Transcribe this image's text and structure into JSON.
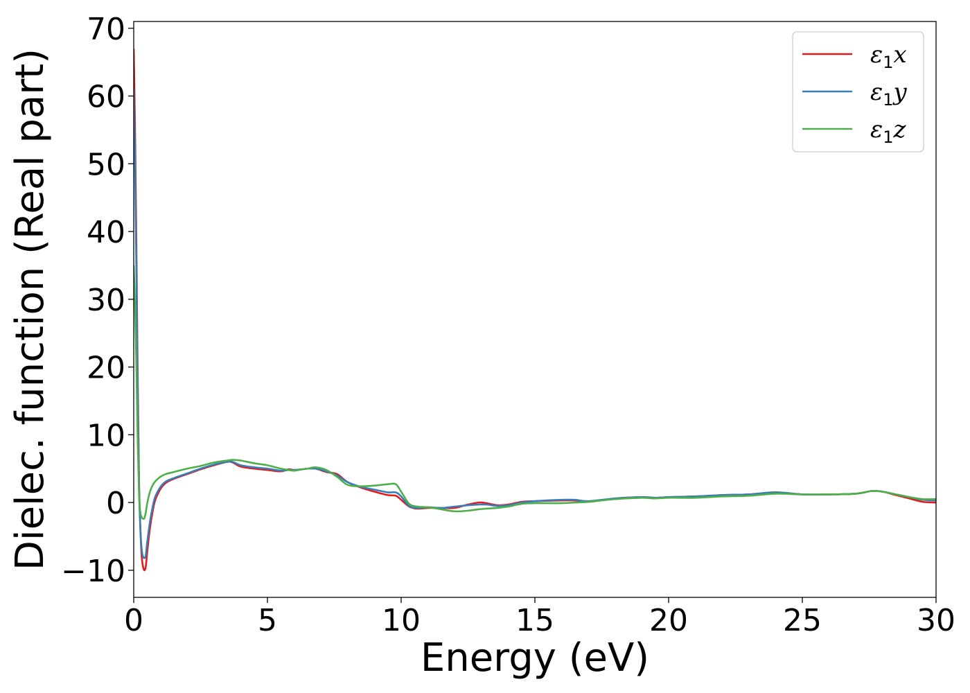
{
  "chart_data": {
    "type": "line",
    "title": "",
    "xlabel": "Energy (eV)",
    "ylabel": "Dielec. function (Real part)",
    "xlim": [
      0,
      30
    ],
    "ylim": [
      -14,
      71
    ],
    "xticks": [
      0,
      5,
      10,
      15,
      20,
      25,
      30
    ],
    "xtick_labels": [
      "0",
      "5",
      "10",
      "15",
      "20",
      "25",
      "30"
    ],
    "yticks": [
      -10,
      0,
      10,
      20,
      30,
      40,
      50,
      60,
      70
    ],
    "ytick_labels": [
      "−10",
      "0",
      "10",
      "20",
      "30",
      "40",
      "50",
      "60",
      "70"
    ],
    "grid": false,
    "legend_position": "top-right",
    "series": [
      {
        "name": "ε₁x",
        "legend": {
          "base": "ε",
          "sub": "1",
          "comp": "x"
        },
        "color": "#e41a1c",
        "x": [
          0.0,
          0.05,
          0.1,
          0.15,
          0.2,
          0.25,
          0.3,
          0.35,
          0.4,
          0.45,
          0.5,
          0.6,
          0.7,
          0.8,
          1.0,
          1.2,
          1.5,
          2.0,
          2.5,
          3.0,
          3.5,
          3.7,
          4.0,
          4.5,
          5.0,
          5.5,
          5.8,
          6.0,
          6.3,
          6.5,
          6.8,
          7.2,
          7.6,
          8.0,
          8.5,
          9.0,
          9.5,
          9.8,
          10.0,
          10.3,
          10.6,
          11.0,
          11.5,
          12.0,
          12.5,
          12.9,
          13.2,
          13.6,
          14.0,
          14.5,
          15.0,
          16.0,
          16.5,
          17.0,
          18.0,
          19.0,
          19.5,
          20.0,
          21.0,
          22.0,
          23.0,
          24.0,
          25.0,
          26.0,
          27.0,
          27.6,
          28.0,
          28.5,
          29.0,
          29.5,
          30.0
        ],
        "y": [
          67.0,
          55.0,
          38.0,
          18.0,
          3.0,
          -4.0,
          -8.0,
          -9.5,
          -10.0,
          -9.5,
          -7.5,
          -4.0,
          -1.5,
          0.3,
          2.0,
          2.9,
          3.5,
          4.2,
          4.9,
          5.5,
          6.0,
          5.9,
          5.3,
          5.0,
          4.8,
          4.6,
          4.9,
          4.8,
          4.9,
          5.0,
          5.0,
          4.5,
          4.2,
          3.0,
          2.2,
          1.6,
          1.1,
          1.0,
          0.4,
          -0.6,
          -0.9,
          -0.8,
          -0.8,
          -0.8,
          -0.3,
          0.0,
          -0.1,
          -0.4,
          -0.3,
          0.1,
          0.2,
          0.3,
          0.3,
          0.1,
          0.6,
          0.8,
          0.7,
          0.8,
          0.9,
          1.1,
          1.2,
          1.5,
          1.2,
          1.2,
          1.3,
          1.7,
          1.6,
          1.1,
          0.6,
          0.1,
          0.0
        ]
      },
      {
        "name": "ε₁y",
        "legend": {
          "base": "ε",
          "sub": "1",
          "comp": "y"
        },
        "color": "#377eb8",
        "x": [
          0.0,
          0.05,
          0.1,
          0.15,
          0.2,
          0.25,
          0.3,
          0.35,
          0.4,
          0.45,
          0.5,
          0.6,
          0.7,
          0.8,
          1.0,
          1.2,
          1.5,
          2.0,
          2.5,
          3.0,
          3.5,
          3.7,
          4.0,
          4.5,
          5.0,
          5.5,
          5.8,
          6.0,
          6.3,
          6.5,
          6.8,
          7.2,
          7.6,
          8.0,
          8.5,
          9.0,
          9.5,
          9.8,
          10.0,
          10.3,
          10.6,
          11.0,
          11.5,
          12.0,
          12.5,
          12.9,
          13.2,
          13.6,
          14.0,
          14.5,
          15.0,
          16.0,
          16.5,
          17.0,
          18.0,
          19.0,
          19.5,
          20.0,
          21.0,
          22.0,
          23.0,
          24.0,
          25.0,
          26.0,
          27.0,
          27.6,
          28.0,
          28.5,
          29.0,
          29.5,
          30.0
        ],
        "y": [
          61.0,
          50.0,
          34.0,
          15.0,
          2.0,
          -4.0,
          -7.0,
          -8.0,
          -8.2,
          -7.8,
          -6.0,
          -3.0,
          -0.8,
          0.8,
          2.3,
          3.1,
          3.6,
          4.3,
          5.0,
          5.6,
          6.0,
          6.0,
          5.5,
          5.2,
          5.0,
          4.7,
          4.8,
          4.8,
          4.9,
          5.0,
          5.0,
          4.6,
          4.0,
          3.0,
          2.3,
          1.9,
          1.5,
          1.5,
          0.9,
          -0.5,
          -0.8,
          -0.7,
          -0.8,
          -0.6,
          -0.4,
          -0.3,
          -0.3,
          -0.5,
          -0.4,
          0.0,
          0.2,
          0.4,
          0.4,
          0.2,
          0.6,
          0.8,
          0.7,
          0.8,
          0.9,
          1.1,
          1.2,
          1.5,
          1.2,
          1.2,
          1.3,
          1.7,
          1.6,
          1.2,
          0.8,
          0.4,
          0.3
        ]
      },
      {
        "name": "ε₁z",
        "legend": {
          "base": "ε",
          "sub": "1",
          "comp": "z"
        },
        "color": "#4daf4a",
        "x": [
          0.0,
          0.05,
          0.1,
          0.15,
          0.2,
          0.25,
          0.3,
          0.35,
          0.4,
          0.45,
          0.5,
          0.6,
          0.7,
          0.8,
          1.0,
          1.2,
          1.5,
          2.0,
          2.5,
          3.0,
          3.5,
          3.7,
          4.0,
          4.5,
          5.0,
          5.5,
          5.8,
          6.0,
          6.3,
          6.5,
          6.8,
          7.2,
          7.6,
          8.0,
          8.5,
          9.0,
          9.5,
          9.8,
          10.0,
          10.3,
          10.6,
          11.0,
          11.5,
          12.0,
          12.5,
          12.9,
          13.2,
          13.6,
          14.0,
          14.5,
          15.0,
          16.0,
          16.5,
          17.0,
          18.0,
          19.0,
          19.5,
          20.0,
          21.0,
          22.0,
          23.0,
          24.0,
          25.0,
          26.0,
          27.0,
          27.6,
          28.0,
          28.5,
          29.0,
          29.5,
          30.0
        ],
        "y": [
          35.0,
          29.0,
          20.0,
          9.0,
          1.0,
          -1.5,
          -2.2,
          -2.4,
          -2.3,
          -1.5,
          -0.2,
          1.5,
          2.5,
          3.1,
          3.8,
          4.2,
          4.5,
          5.0,
          5.4,
          5.9,
          6.2,
          6.3,
          6.2,
          5.8,
          5.5,
          5.0,
          4.8,
          4.7,
          4.9,
          5.0,
          5.2,
          4.8,
          3.8,
          2.6,
          2.4,
          2.5,
          2.7,
          2.7,
          1.6,
          -0.2,
          -0.6,
          -0.7,
          -1.0,
          -1.3,
          -1.2,
          -1.0,
          -0.9,
          -0.8,
          -0.6,
          -0.2,
          -0.1,
          -0.1,
          0.0,
          0.1,
          0.5,
          0.7,
          0.6,
          0.7,
          0.7,
          0.9,
          1.0,
          1.3,
          1.2,
          1.2,
          1.3,
          1.7,
          1.6,
          1.2,
          0.8,
          0.5,
          0.5
        ]
      }
    ]
  }
}
